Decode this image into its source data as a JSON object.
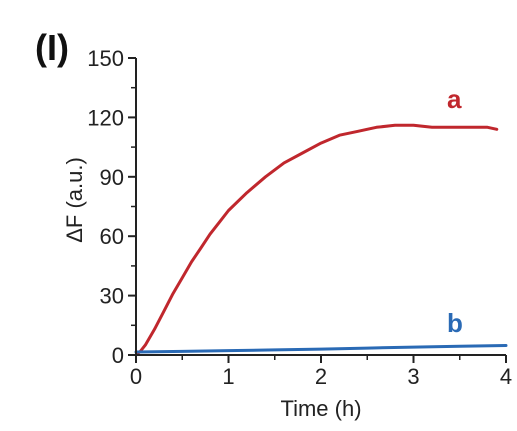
{
  "panel_label": "(I)",
  "chart_data": {
    "type": "line",
    "title": "",
    "xlabel": "Time (h)",
    "ylabel": "ΔF (a.u.)",
    "xlim": [
      0,
      4
    ],
    "ylim": [
      0,
      150
    ],
    "xticks": [
      0,
      1,
      2,
      3,
      4
    ],
    "yticks": [
      0,
      30,
      60,
      90,
      120,
      150
    ],
    "xtick_labels": [
      "0",
      "1",
      "2",
      "3",
      "4"
    ],
    "ytick_labels": [
      "0",
      "30",
      "60",
      "90",
      "120",
      "150"
    ],
    "grid": false,
    "series": [
      {
        "name": "a",
        "color": "#c0272d",
        "x": [
          0.0,
          0.05,
          0.1,
          0.2,
          0.3,
          0.4,
          0.5,
          0.6,
          0.7,
          0.8,
          0.9,
          1.0,
          1.2,
          1.4,
          1.6,
          1.8,
          2.0,
          2.2,
          2.4,
          2.6,
          2.8,
          3.0,
          3.2,
          3.4,
          3.6,
          3.8,
          3.9
        ],
        "y": [
          0,
          2,
          5,
          13,
          22,
          31,
          39,
          47,
          54,
          61,
          67,
          73,
          82,
          90,
          97,
          102,
          107,
          111,
          113,
          115,
          116,
          116,
          115,
          115,
          115,
          115,
          114
        ]
      },
      {
        "name": "b",
        "color": "#2a6ab5",
        "x": [
          0.0,
          0.5,
          1.0,
          1.5,
          2.0,
          2.5,
          3.0,
          3.5,
          4.0
        ],
        "y": [
          1.5,
          1.8,
          2.2,
          2.6,
          3.0,
          3.5,
          4.0,
          4.4,
          4.8
        ]
      }
    ]
  }
}
